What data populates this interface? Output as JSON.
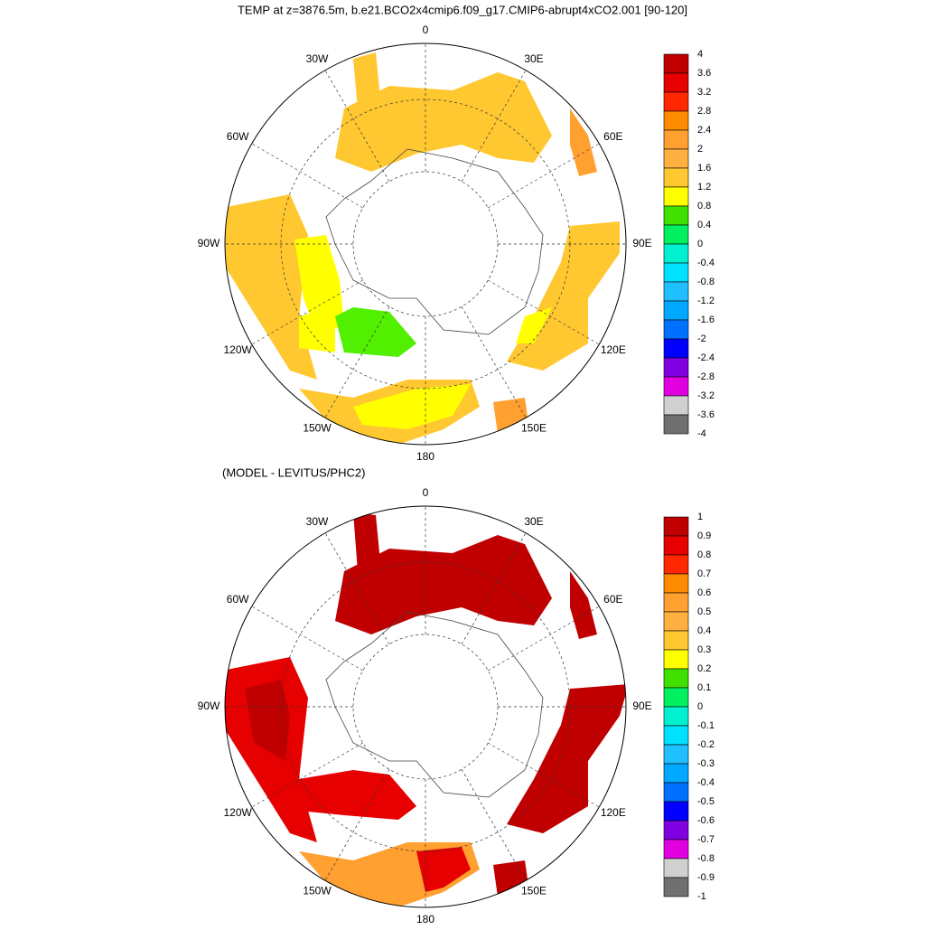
{
  "title": "TEMP at z=3876.5m, b.e21.BCO2x4cmip6.f09_g17.CMIP6-abrupt4xCO2.001 [90-120]",
  "panels": [
    {
      "longitude_labels": [
        "0",
        "30E",
        "60E",
        "90E",
        "120E",
        "150E",
        "180",
        "150W",
        "120W",
        "90W",
        "60W",
        "30W"
      ],
      "colorbar": {
        "levels": [
          4,
          3.6,
          3.2,
          2.8,
          2.4,
          2,
          1.6,
          1.2,
          0.8,
          0.4,
          0,
          -0.4,
          -0.8,
          -1.2,
          -1.6,
          -2,
          -2.4,
          -2.8,
          -3.2,
          -3.6,
          -4
        ],
        "colors": [
          "#c00000",
          "#e60000",
          "#ff2800",
          "#ff8c00",
          "#ffa030",
          "#ffb040",
          "#ffc830",
          "#ffff00",
          "#40e000",
          "#00f060",
          "#00f0d0",
          "#00e0ff",
          "#20c0ff",
          "#00a8ff",
          "#0070ff",
          "#0000ff",
          "#8000e0",
          "#e000e0",
          "#d0d0d0",
          "#707070"
        ]
      }
    },
    {
      "subtitle": "(MODEL - LEVITUS/PHC2)",
      "longitude_labels": [
        "0",
        "30E",
        "60E",
        "90E",
        "120E",
        "150E",
        "180",
        "150W",
        "120W",
        "90W",
        "60W",
        "30W"
      ],
      "colorbar": {
        "levels": [
          1,
          0.9,
          0.8,
          0.7,
          0.6,
          0.5,
          0.4,
          0.3,
          0.2,
          0.1,
          0,
          -0.1,
          -0.2,
          -0.3,
          -0.4,
          -0.5,
          -0.6,
          -0.7,
          -0.8,
          -0.9,
          -1
        ],
        "colors": [
          "#c00000",
          "#e60000",
          "#ff2800",
          "#ff8c00",
          "#ffa030",
          "#ffb040",
          "#ffc830",
          "#ffff00",
          "#40e000",
          "#00f060",
          "#00f0d0",
          "#00e0ff",
          "#20c0ff",
          "#00a8ff",
          "#0070ff",
          "#0000ff",
          "#8000e0",
          "#e000e0",
          "#d0d0d0",
          "#707070"
        ]
      }
    }
  ]
}
